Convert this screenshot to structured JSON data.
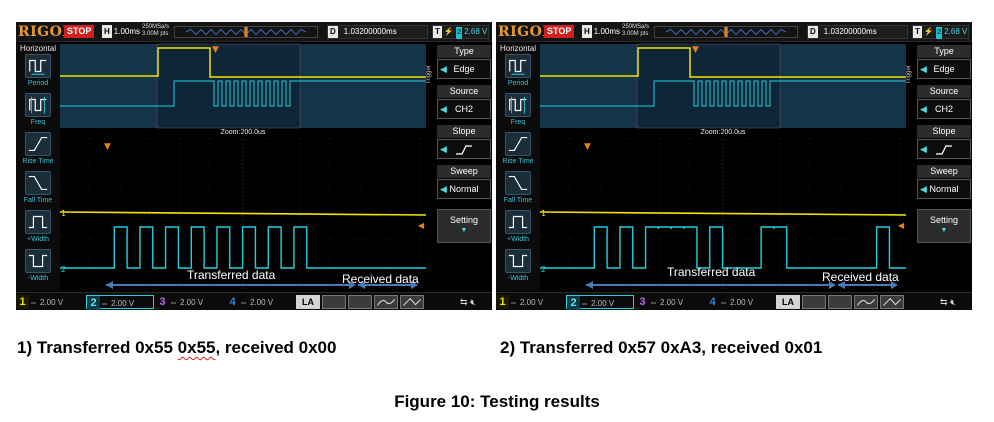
{
  "scopes": [
    {
      "brand": "RIGOL",
      "run_state": "STOP",
      "timebase_tag": "H",
      "timebase": "1.00ms",
      "sample_rate": "250MSa/s",
      "memory_depth": "3.00M pts",
      "delay_tag": "D",
      "delay": "1.03200000ms",
      "trigger_tag": "T",
      "trigger_channel": "2",
      "trigger_level": "2.68 V",
      "left_menu_title": "Horizontal",
      "left_menu": [
        "Period",
        "Freq",
        "Rise Time",
        "Fall Time",
        "+Width",
        "-Width"
      ],
      "zoom_label": "Zoom:200.0us",
      "trigger_menu_label": "Trigger",
      "right_menu": [
        {
          "label": "Type",
          "value": "Edge"
        },
        {
          "label": "Source",
          "value": "CH2"
        },
        {
          "label": "Slope",
          "value": ""
        },
        {
          "label": "Sweep",
          "value": "Normal"
        }
      ],
      "setting_label": "Setting",
      "channels": [
        {
          "num": "1",
          "scale": "2.00 V"
        },
        {
          "num": "2",
          "scale": "2.00 V"
        },
        {
          "num": "3",
          "scale": "2.00 V"
        },
        {
          "num": "4",
          "scale": "2.00 V"
        }
      ],
      "la_label": "LA",
      "annotations": {
        "transferred": "Transferred data",
        "received": "Received data"
      },
      "bits": [
        0,
        1,
        0,
        1,
        0,
        1,
        0,
        1,
        0,
        1,
        0,
        1,
        0,
        1,
        0,
        1,
        0,
        0,
        0,
        0,
        0,
        0,
        0,
        0
      ]
    },
    {
      "brand": "RIGOL",
      "run_state": "STOP",
      "timebase_tag": "H",
      "timebase": "1.00ms",
      "sample_rate": "250MSa/s",
      "memory_depth": "3.00M pts",
      "delay_tag": "D",
      "delay": "1.03200000ms",
      "trigger_tag": "T",
      "trigger_channel": "2",
      "trigger_level": "2.68 V",
      "left_menu_title": "Horizontal",
      "left_menu": [
        "Period",
        "Freq",
        "Rise Time",
        "Fall Time",
        "+Width",
        "-Width"
      ],
      "zoom_label": "Zoom:200.0us",
      "trigger_menu_label": "Trigger",
      "right_menu": [
        {
          "label": "Type",
          "value": "Edge"
        },
        {
          "label": "Source",
          "value": "CH2"
        },
        {
          "label": "Slope",
          "value": ""
        },
        {
          "label": "Sweep",
          "value": "Normal"
        }
      ],
      "setting_label": "Setting",
      "channels": [
        {
          "num": "1",
          "scale": "2.00 V"
        },
        {
          "num": "2",
          "scale": "2.00 V"
        },
        {
          "num": "3",
          "scale": "2.00 V"
        },
        {
          "num": "4",
          "scale": "2.00 V"
        }
      ],
      "la_label": "LA",
      "annotations": {
        "transferred": "Transferred data",
        "received": "Received data"
      },
      "bits": [
        0,
        1,
        0,
        1,
        0,
        1,
        1,
        1,
        1,
        0,
        1,
        0,
        0,
        0,
        1,
        1,
        0,
        0,
        0,
        0,
        0,
        0,
        0,
        1
      ]
    }
  ],
  "captions": {
    "left": "1) Transferred 0x55 ",
    "left_marked": "0x55",
    "left_tail": ", received 0x00",
    "right": "2) Transferred 0x57 0xA3, received 0x01"
  },
  "figure_title": "Figure 10: Testing results",
  "colors": {
    "ch1": "#f5e200",
    "ch2": "#1fd0df",
    "ch3": "#c266e0",
    "ch4": "#3f7de0",
    "arrow": "#4a78b8",
    "trigger_marker": "#e0821f",
    "stop": "#d21f1f"
  }
}
